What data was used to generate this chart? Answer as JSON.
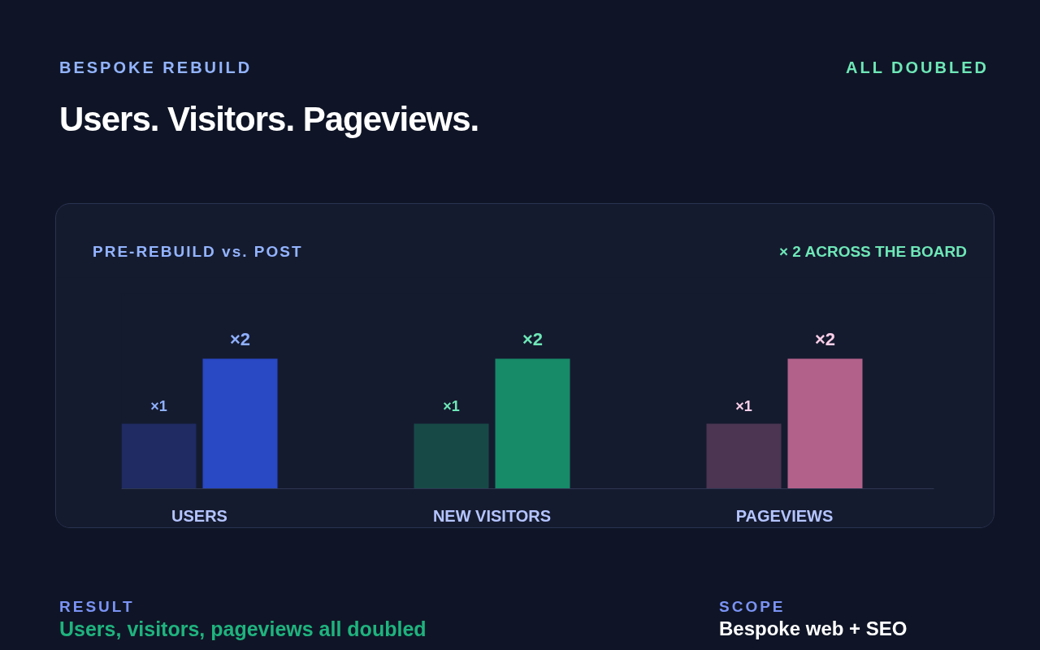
{
  "chart_data": {
    "type": "bar",
    "title": "Users. Visitors. Pageviews.",
    "subtitle": "BESPOKE REBUILD",
    "categories": [
      "USERS",
      "NEW VISITORS",
      "PAGEVIEWS"
    ],
    "series": [
      {
        "colors": [
          "#1f2b62",
          "#174a47",
          "#4b3552"
        ],
        "values": [
          1,
          1,
          1
        ],
        "value_labels": [
          "×1",
          "×1",
          "×1"
        ]
      },
      {
        "colors": [
          "#2848c4",
          "#178a68",
          "#b2618a"
        ],
        "values": [
          2,
          2,
          2
        ],
        "value_labels": [
          "×2",
          "×2",
          "×2"
        ]
      }
    ],
    "grid": false,
    "annotations": [
      "ALL DOUBLED",
      "PRE-REBUILD vs. POST",
      "× 2 ACROSS THE BOARD",
      "RESULT",
      "Users, visitors, pageviews all doubled",
      "SCOPE",
      "Bespoke web + SEO"
    ]
  }
}
